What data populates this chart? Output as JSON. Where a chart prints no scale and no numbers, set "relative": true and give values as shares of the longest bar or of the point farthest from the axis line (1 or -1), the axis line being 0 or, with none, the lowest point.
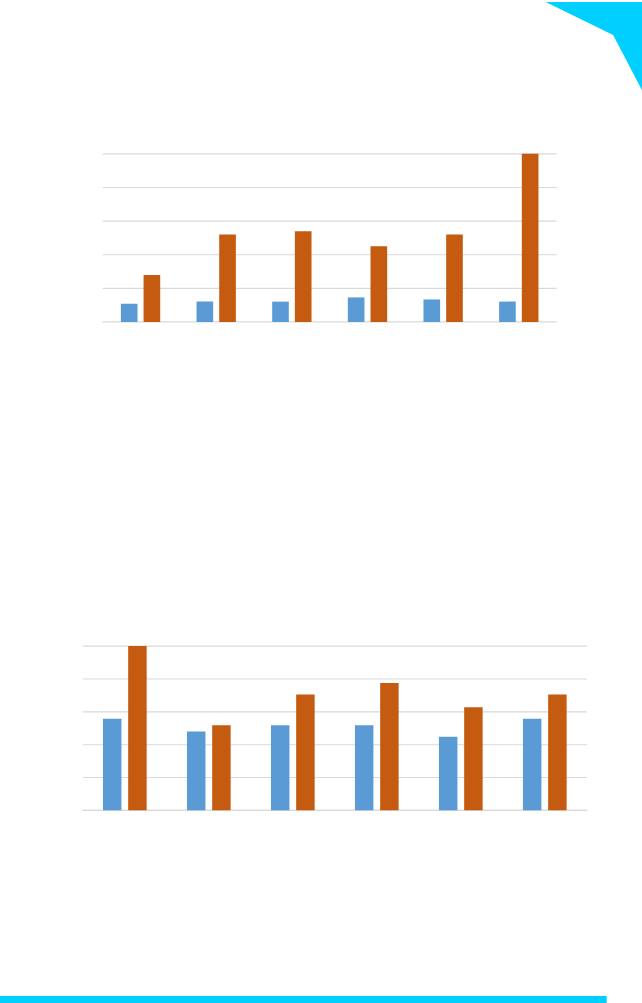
{
  "chart_data": [
    {
      "type": "bar",
      "relative": true,
      "grid": "y",
      "categories": [
        null,
        null,
        null,
        null,
        null,
        null
      ],
      "series": [
        {
          "color": "#5b9bd5",
          "values": [
            0.108,
            0.121,
            0.121,
            0.146,
            0.134,
            0.121
          ]
        },
        {
          "color": "#c55a11",
          "values": [
            0.28,
            0.52,
            0.54,
            0.45,
            0.52,
            1
          ]
        }
      ]
    },
    {
      "type": "bar",
      "relative": true,
      "grid": "y",
      "categories": [
        null,
        null,
        null,
        null,
        null,
        null
      ],
      "series": [
        {
          "color": "#5b9bd5",
          "values": [
            0.558,
            0.481,
            0.519,
            0.519,
            0.449,
            0.558
          ]
        },
        {
          "color": "#c55a11",
          "values": [
            1,
            0.519,
            0.705,
            0.776,
            0.628,
            0.705
          ]
        }
      ]
    }
  ]
}
